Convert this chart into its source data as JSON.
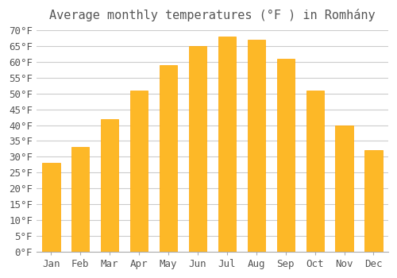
{
  "title": "Average monthly temperatures (°F ) in Romhány",
  "months": [
    "Jan",
    "Feb",
    "Mar",
    "Apr",
    "May",
    "Jun",
    "Jul",
    "Aug",
    "Sep",
    "Oct",
    "Nov",
    "Dec"
  ],
  "values": [
    28,
    33,
    42,
    51,
    59,
    65,
    68,
    67,
    61,
    51,
    40,
    32
  ],
  "bar_color": "#FDB827",
  "bar_edge_color": "#FFA500",
  "background_color": "#ffffff",
  "grid_color": "#cccccc",
  "ylim": [
    0,
    70
  ],
  "yticks": [
    0,
    5,
    10,
    15,
    20,
    25,
    30,
    35,
    40,
    45,
    50,
    55,
    60,
    65,
    70
  ],
  "title_fontsize": 11,
  "tick_fontsize": 9,
  "text_color": "#555555"
}
